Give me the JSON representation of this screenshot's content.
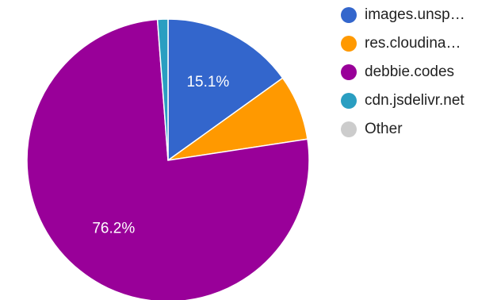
{
  "chart_data": {
    "type": "pie",
    "slices": [
      {
        "name": "images.unsp…",
        "value": 15.1,
        "label": "15.1%",
        "color": "#3366cc"
      },
      {
        "name": "res.cloudina…",
        "value": 7.5,
        "label": "",
        "color": "#ff9900"
      },
      {
        "name": "debbie.codes",
        "value": 76.2,
        "label": "76.2%",
        "color": "#990099"
      },
      {
        "name": "cdn.jsdelivr.net",
        "value": 1.2,
        "label": "",
        "color": "#2a9ec1"
      },
      {
        "name": "Other",
        "value": 0.0,
        "label": "",
        "color": "#cccccc"
      }
    ],
    "legend_position": "right"
  }
}
